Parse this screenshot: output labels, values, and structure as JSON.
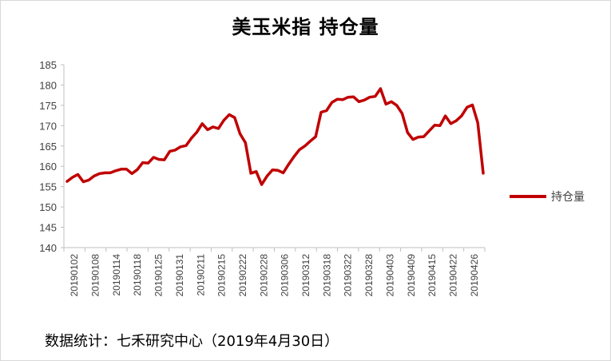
{
  "title": "美玉米指 持仓量",
  "source_note": "数据统计：七禾研究中心（2019年4月30日）",
  "colors": {
    "series": "#c00000",
    "axis": "#bfbfbf",
    "text": "#404040"
  },
  "chart_data": {
    "type": "line",
    "title": "美玉米指 持仓量",
    "xlabel": "",
    "ylabel": "",
    "ylim": [
      140,
      185
    ],
    "yticks": [
      140,
      145,
      150,
      155,
      160,
      165,
      170,
      175,
      180,
      185
    ],
    "grid": false,
    "legend_position": "right",
    "x_tick_labels": [
      "20190102",
      "20190108",
      "20190114",
      "20190118",
      "20190125",
      "20190131",
      "20190211",
      "20190215",
      "20190222",
      "20190228",
      "20190306",
      "20190312",
      "20190318",
      "20190322",
      "20190328",
      "20190403",
      "20190409",
      "20190415",
      "20190422",
      "20190426"
    ],
    "series": [
      {
        "name": "持仓量",
        "values": [
          156.3,
          157.3,
          158.0,
          156.2,
          156.6,
          157.6,
          158.2,
          158.4,
          158.4,
          158.9,
          159.3,
          159.3,
          158.2,
          159.2,
          160.9,
          160.8,
          162.2,
          161.7,
          161.6,
          163.7,
          164.0,
          164.8,
          165.1,
          166.9,
          168.4,
          170.5,
          169.0,
          169.7,
          169.3,
          171.3,
          172.7,
          172.0,
          168.0,
          165.8,
          158.3,
          158.7,
          155.5,
          157.6,
          159.1,
          159.0,
          158.4,
          160.5,
          162.4,
          164.1,
          165.0,
          166.2,
          167.3,
          173.3,
          173.7,
          175.7,
          176.5,
          176.4,
          177.0,
          177.1,
          175.9,
          176.3,
          177.0,
          177.2,
          179.1,
          175.3,
          175.9,
          175.0,
          173.0,
          168.3,
          166.6,
          167.2,
          167.3,
          168.7,
          170.1,
          170.0,
          172.4,
          170.5,
          171.2,
          172.4,
          174.5,
          175.1,
          170.7,
          158.3
        ]
      }
    ]
  }
}
